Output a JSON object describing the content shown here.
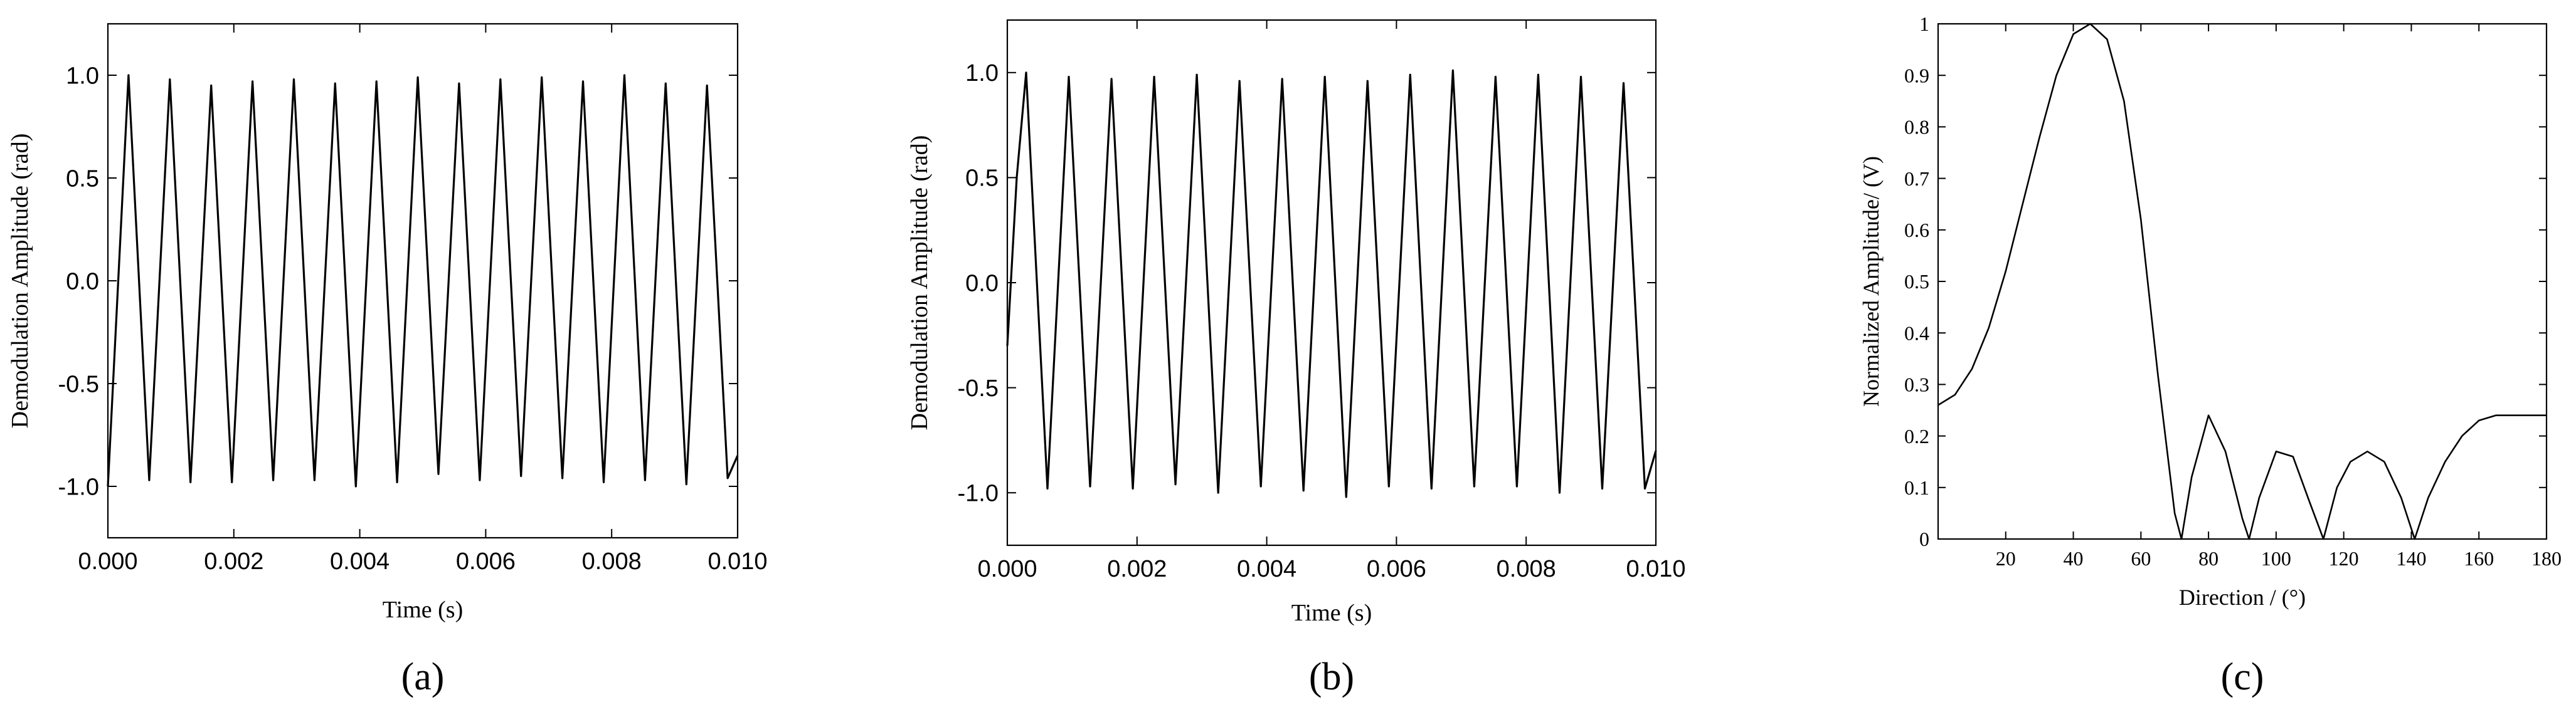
{
  "chart_data": [
    {
      "id": "a",
      "type": "line",
      "panel_label": "(a)",
      "xlabel": "Time (s)",
      "ylabel": "Demodulation Amplitude (rad)",
      "xlim": [
        0.0,
        0.01
      ],
      "ylim": [
        -1.25,
        1.25
      ],
      "xticks": [
        0.0,
        0.002,
        0.004,
        0.006,
        0.008,
        0.01
      ],
      "xtick_labels": [
        "0.000",
        "0.002",
        "0.004",
        "0.006",
        "0.008",
        "0.010"
      ],
      "yticks": [
        1.0,
        0.5,
        0.0,
        -0.5,
        -1.0
      ],
      "ytick_labels": [
        "1.0",
        "0.5",
        "0.0",
        "-0.5",
        "-1.0"
      ],
      "grid": false,
      "series": [
        {
          "x": [
            0.0,
            0.000164,
            0.000328,
            0.000656,
            0.000984,
            0.001312,
            0.00164,
            0.001969,
            0.002297,
            0.002625,
            0.002953,
            0.003281,
            0.003609,
            0.003937,
            0.004265,
            0.004593,
            0.004921,
            0.005249,
            0.005577,
            0.005905,
            0.006233,
            0.006561,
            0.006889,
            0.007217,
            0.007545,
            0.007874,
            0.008202,
            0.00853,
            0.008858,
            0.009186,
            0.009514,
            0.009842,
            0.01
          ],
          "y": [
            -1.0,
            0.0,
            1.0,
            -0.97,
            0.98,
            -0.98,
            0.95,
            -0.98,
            0.97,
            -0.97,
            0.98,
            -0.97,
            0.96,
            -1.0,
            0.97,
            -0.98,
            0.99,
            -0.94,
            0.96,
            -0.97,
            0.98,
            -0.95,
            0.99,
            -0.96,
            0.97,
            -0.98,
            1.0,
            -0.97,
            0.96,
            -0.99,
            0.95,
            -0.96,
            -0.85
          ]
        }
      ]
    },
    {
      "id": "b",
      "type": "line",
      "panel_label": "(b)",
      "xlabel": "Time (s)",
      "ylabel": "Demodulation Amplitude (rad)",
      "xlim": [
        0.0,
        0.01
      ],
      "ylim": [
        -1.25,
        1.25
      ],
      "xticks": [
        0.0,
        0.002,
        0.004,
        0.006,
        0.008,
        0.01
      ],
      "xtick_labels": [
        "0.000",
        "0.002",
        "0.004",
        "0.006",
        "0.008",
        "0.010"
      ],
      "yticks": [
        1.0,
        0.5,
        0.0,
        -0.5,
        -1.0
      ],
      "ytick_labels": [
        "1.0",
        "0.5",
        "0.0",
        "-0.5",
        "-1.0"
      ],
      "grid": false,
      "series": [
        {
          "x": [
            0.0,
            0.000145,
            0.00029,
            0.000619,
            0.000948,
            0.001277,
            0.001606,
            0.001935,
            0.002264,
            0.002593,
            0.002922,
            0.003251,
            0.00358,
            0.003909,
            0.004238,
            0.004567,
            0.004896,
            0.005225,
            0.005554,
            0.005883,
            0.006212,
            0.006541,
            0.00687,
            0.007199,
            0.007528,
            0.007857,
            0.008186,
            0.008515,
            0.008844,
            0.009173,
            0.009502,
            0.009831,
            0.01
          ],
          "y": [
            -0.3,
            0.5,
            1.0,
            -0.98,
            0.98,
            -0.97,
            0.97,
            -0.98,
            0.98,
            -0.96,
            0.99,
            -1.0,
            0.96,
            -0.97,
            0.97,
            -0.99,
            0.98,
            -1.02,
            0.96,
            -0.97,
            0.99,
            -0.98,
            1.01,
            -0.97,
            0.98,
            -0.97,
            0.99,
            -1.0,
            0.98,
            -0.98,
            0.95,
            -0.98,
            -0.8
          ]
        }
      ]
    },
    {
      "id": "c",
      "type": "line",
      "panel_label": "(c)",
      "xlabel": "Direction / (°)",
      "ylabel": "Normalized Amplitude/ (V)",
      "xlim": [
        0,
        180
      ],
      "ylim": [
        0,
        1
      ],
      "xticks": [
        20,
        40,
        60,
        80,
        100,
        120,
        140,
        160,
        180
      ],
      "xtick_labels": [
        "20",
        "40",
        "60",
        "80",
        "100",
        "120",
        "140",
        "160",
        "180"
      ],
      "yticks": [
        0,
        0.1,
        0.2,
        0.3,
        0.4,
        0.5,
        0.6,
        0.7,
        0.8,
        0.9,
        1
      ],
      "ytick_labels": [
        "0",
        "0.1",
        "0.2",
        "0.3",
        "0.4",
        "0.5",
        "0.6",
        "0.7",
        "0.8",
        "0.9",
        "1"
      ],
      "grid": false,
      "series": [
        {
          "x": [
            0,
            5,
            10,
            15,
            20,
            25,
            30,
            35,
            40,
            45,
            50,
            55,
            60,
            65,
            70,
            72,
            75,
            80,
            85,
            90,
            92,
            95,
            100,
            105,
            110,
            114,
            118,
            122,
            127,
            132,
            137,
            141,
            145,
            150,
            155,
            160,
            165,
            170,
            175,
            180
          ],
          "y": [
            0.26,
            0.28,
            0.33,
            0.41,
            0.52,
            0.65,
            0.78,
            0.9,
            0.98,
            1.0,
            0.97,
            0.85,
            0.62,
            0.32,
            0.05,
            0.0,
            0.12,
            0.24,
            0.17,
            0.04,
            0.0,
            0.08,
            0.17,
            0.16,
            0.07,
            0.0,
            0.1,
            0.15,
            0.17,
            0.15,
            0.08,
            0.0,
            0.08,
            0.15,
            0.2,
            0.23,
            0.24,
            0.24,
            0.24,
            0.24
          ]
        }
      ]
    }
  ]
}
